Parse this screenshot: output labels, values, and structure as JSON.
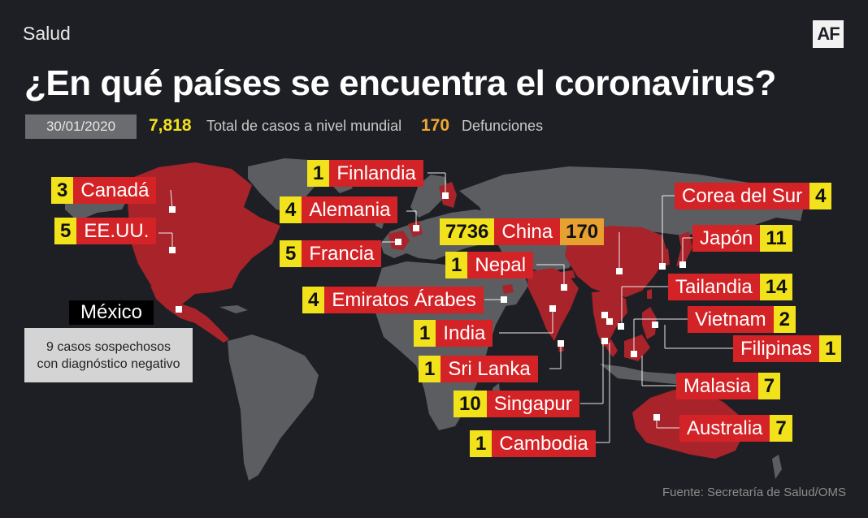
{
  "header": {
    "section": "Salud",
    "logo": "AF",
    "title": "¿En qué países se encuentra el coronavirus?"
  },
  "stats": {
    "date": "30/01/2020",
    "total_cases": "7,818",
    "total_label": "Total de casos a nivel mundial",
    "deaths": "170",
    "deaths_label": "Defunciones"
  },
  "countries": [
    {
      "name": "Finlandia",
      "cases": "1"
    },
    {
      "name": "Alemania",
      "cases": "4"
    },
    {
      "name": "Francia",
      "cases": "5"
    },
    {
      "name": "Canadá",
      "cases": "3"
    },
    {
      "name": "EE.UU.",
      "cases": "5"
    },
    {
      "name": "China",
      "cases": "7736",
      "deaths": "170"
    },
    {
      "name": "Nepal",
      "cases": "1"
    },
    {
      "name": "Emiratos Árabes",
      "cases": "4"
    },
    {
      "name": "India",
      "cases": "1"
    },
    {
      "name": "Sri Lanka",
      "cases": "1"
    },
    {
      "name": "Singapur",
      "cases": "10"
    },
    {
      "name": "Cambodia",
      "cases": "1"
    },
    {
      "name": "Corea del Sur",
      "cases": "4"
    },
    {
      "name": "Japón",
      "cases": "11"
    },
    {
      "name": "Tailandia",
      "cases": "14"
    },
    {
      "name": "Vietnam",
      "cases": "2"
    },
    {
      "name": "Filipinas",
      "cases": "1"
    },
    {
      "name": "Malasia",
      "cases": "7"
    },
    {
      "name": "Australia",
      "cases": "7"
    }
  ],
  "mexico": {
    "name": "México",
    "note_line1": "9 casos sospechosos",
    "note_line2": "con diagnóstico negativo"
  },
  "source": "Fuente: Secretaría de Salud/OMS",
  "colors": {
    "background": "#1e1f24",
    "land": "#5c5d61",
    "affected": "#a8232a",
    "label_red": "#d42327",
    "number_yellow": "#f2e21c",
    "deaths_orange": "#e8a030"
  }
}
